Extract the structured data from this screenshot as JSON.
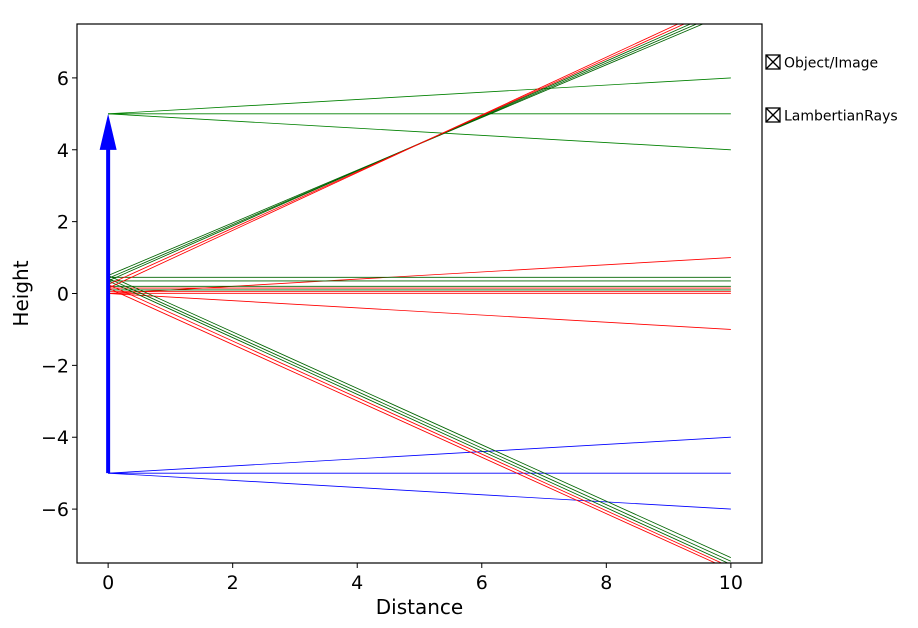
{
  "chart_data": {
    "type": "line",
    "title": "",
    "xlabel": "Distance",
    "ylabel": "Height",
    "xlim": [
      -0.5,
      10.5
    ],
    "ylim": [
      -7.5,
      7.5
    ],
    "xticks": [
      "0",
      "2",
      "4",
      "6",
      "8",
      "10"
    ],
    "yticks": [
      "−6",
      "−4",
      "−2",
      "0",
      "2",
      "4",
      "6"
    ],
    "grid": false,
    "legend": {
      "placement": "right",
      "entries": [
        {
          "label": "Object/Image",
          "checkbox": true
        },
        {
          "label": "LambertianRays",
          "checkbox": true
        }
      ]
    },
    "object_arrow": {
      "x": 0,
      "y_start": -5,
      "y_end": 5,
      "color": "#0000ff"
    },
    "series": [
      {
        "color": "#008000",
        "lines": [
          {
            "x": [
              0,
              10
            ],
            "y": [
              5,
              6
            ]
          },
          {
            "x": [
              0,
              10
            ],
            "y": [
              5,
              5
            ]
          },
          {
            "x": [
              0,
              10
            ],
            "y": [
              5,
              4
            ]
          }
        ]
      },
      {
        "color": "#0000ff",
        "lines": [
          {
            "x": [
              0,
              10
            ],
            "y": [
              -5,
              -4
            ]
          },
          {
            "x": [
              0,
              10
            ],
            "y": [
              -5,
              -5
            ]
          },
          {
            "x": [
              0,
              10
            ],
            "y": [
              -5,
              -6
            ]
          }
        ]
      },
      {
        "color": "#ff0000",
        "lines": [
          {
            "x": [
              0,
              10
            ],
            "y": [
              0,
              1
            ]
          },
          {
            "x": [
              0,
              10
            ],
            "y": [
              0,
              0
            ]
          },
          {
            "x": [
              0,
              10
            ],
            "y": [
              0,
              -1
            ]
          }
        ]
      },
      {
        "color": "#006400",
        "lines": [
          {
            "x": [
              0,
              10
            ],
            "y": [
              0.45,
              0.45
            ]
          },
          {
            "x": [
              0,
              10
            ],
            "y": [
              0.35,
              0.35
            ]
          },
          {
            "x": [
              0,
              10
            ],
            "y": [
              0.2,
              0.2
            ]
          },
          {
            "x": [
              0,
              10
            ],
            "y": [
              0.1,
              0.1
            ]
          }
        ]
      },
      {
        "color": "#ff0000",
        "lines": [
          {
            "x": [
              0,
              10
            ],
            "y": [
              0.15,
              0.15
            ]
          },
          {
            "x": [
              0,
              10
            ],
            "y": [
              0.05,
              0.05
            ]
          }
        ]
      },
      {
        "color": "#006400",
        "lines": [
          {
            "x": [
              0,
              9.55
            ],
            "y": [
              0.5,
              7.5
            ]
          },
          {
            "x": [
              0,
              9.45
            ],
            "y": [
              0.42,
              7.5
            ]
          },
          {
            "x": [
              0,
              9.35
            ],
            "y": [
              0.35,
              7.5
            ]
          },
          {
            "x": [
              0,
              10
            ],
            "y": [
              0.5,
              -7.35
            ]
          },
          {
            "x": [
              0,
              10
            ],
            "y": [
              0.42,
              -7.45
            ]
          },
          {
            "x": [
              0,
              9.95
            ],
            "y": [
              0.35,
              -7.5
            ]
          }
        ]
      },
      {
        "color": "#ff0000",
        "lines": [
          {
            "x": [
              0,
              9.25
            ],
            "y": [
              0.25,
              7.5
            ]
          },
          {
            "x": [
              0,
              9.15
            ],
            "y": [
              0.15,
              7.5
            ]
          },
          {
            "x": [
              0,
              9.85
            ],
            "y": [
              0.25,
              -7.5
            ]
          },
          {
            "x": [
              0,
              9.75
            ],
            "y": [
              0.15,
              -7.5
            ]
          }
        ]
      }
    ]
  }
}
